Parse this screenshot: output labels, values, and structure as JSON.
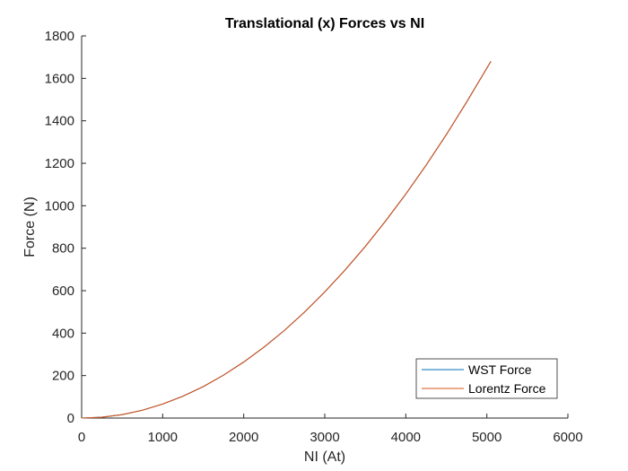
{
  "chart_data": {
    "type": "line",
    "title": "Translational (x) Forces vs NI",
    "xlabel": "NI (At)",
    "ylabel": "Force (N)",
    "xlim": [
      0,
      6000
    ],
    "ylim": [
      0,
      1800
    ],
    "xticks": [
      0,
      1000,
      2000,
      3000,
      4000,
      5000,
      6000
    ],
    "yticks": [
      0,
      200,
      400,
      600,
      800,
      1000,
      1200,
      1400,
      1600,
      1800
    ],
    "x_tick_labels": [
      "0",
      "1000",
      "2000",
      "3000",
      "4000",
      "5000",
      "6000"
    ],
    "y_tick_labels": [
      "0",
      "200",
      "400",
      "600",
      "800",
      "1000",
      "1200",
      "1400",
      "1600",
      "1800"
    ],
    "grid": false,
    "legend_position": "bottom-right",
    "series": [
      {
        "name": "WST Force",
        "color": "#0072BD",
        "x": [
          0,
          250,
          500,
          750,
          1000,
          1250,
          1500,
          1750,
          2000,
          2250,
          2500,
          2750,
          3000,
          3250,
          3500,
          3750,
          4000,
          4250,
          4500,
          4750,
          5050
        ],
        "y": [
          0,
          4,
          16,
          37,
          66,
          103,
          148,
          202,
          264,
          334,
          412,
          499,
          594,
          697,
          808,
          928,
          1055,
          1191,
          1335,
          1488,
          1680
        ]
      },
      {
        "name": "Lorentz Force",
        "color": "#D95319",
        "x": [
          0,
          250,
          500,
          750,
          1000,
          1250,
          1500,
          1750,
          2000,
          2250,
          2500,
          2750,
          3000,
          3250,
          3500,
          3750,
          4000,
          4250,
          4500,
          4750,
          5050
        ],
        "y": [
          0,
          4,
          16,
          37,
          66,
          103,
          148,
          202,
          264,
          334,
          412,
          499,
          594,
          697,
          808,
          928,
          1055,
          1191,
          1335,
          1488,
          1680
        ]
      }
    ]
  }
}
